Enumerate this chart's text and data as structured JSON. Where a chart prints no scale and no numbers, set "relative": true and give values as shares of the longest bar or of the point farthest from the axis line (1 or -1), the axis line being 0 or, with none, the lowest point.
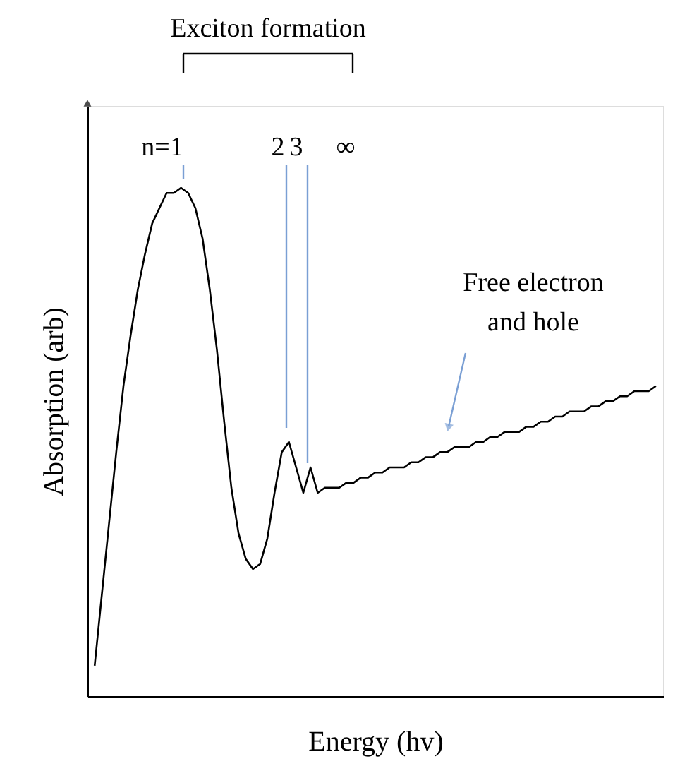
{
  "chart_data": {
    "type": "line",
    "relative": true,
    "grid": false,
    "xlabel": "Energy (hv)",
    "ylabel": "Absorption (arb)",
    "categories": [
      null,
      null,
      null,
      null,
      null,
      null,
      null,
      null,
      null,
      null,
      null,
      null,
      null,
      null,
      null,
      null,
      null,
      null,
      null,
      null,
      null,
      null,
      null,
      null,
      null,
      null,
      null,
      null,
      null,
      null,
      null,
      null,
      null,
      null,
      null,
      null,
      null,
      null,
      null,
      null,
      null,
      null,
      null,
      null,
      null,
      null,
      null,
      null,
      null,
      null,
      null,
      null,
      null,
      null,
      null,
      null,
      null,
      null,
      null,
      null,
      null,
      null,
      null,
      null,
      null,
      null,
      null,
      null,
      null,
      null,
      null,
      null,
      null,
      null,
      null,
      null,
      null,
      null,
      null
    ],
    "series": [
      {
        "color": "#000000",
        "values": [
          0.06,
          0.2,
          0.34,
          0.48,
          0.61,
          0.71,
          0.8,
          0.87,
          0.93,
          0.96,
          0.99,
          0.99,
          1,
          0.99,
          0.96,
          0.9,
          0.8,
          0.68,
          0.54,
          0.41,
          0.32,
          0.27,
          0.25,
          0.26,
          0.31,
          0.4,
          0.48,
          0.5,
          0.45,
          0.4,
          0.45,
          0.4,
          0.41,
          0.41,
          0.41,
          0.42,
          0.42,
          0.43,
          0.43,
          0.44,
          0.44,
          0.45,
          0.45,
          0.45,
          0.46,
          0.46,
          0.47,
          0.47,
          0.48,
          0.48,
          0.49,
          0.49,
          0.49,
          0.5,
          0.5,
          0.51,
          0.51,
          0.52,
          0.52,
          0.52,
          0.53,
          0.53,
          0.54,
          0.54,
          0.55,
          0.55,
          0.56,
          0.56,
          0.56,
          0.57,
          0.57,
          0.58,
          0.58,
          0.59,
          0.59,
          0.6,
          0.6,
          0.6,
          0.61
        ]
      }
    ],
    "annotations": [
      "Exciton formation",
      "n=1",
      "2",
      "3",
      "∞",
      "Free electron\nand hole"
    ]
  }
}
